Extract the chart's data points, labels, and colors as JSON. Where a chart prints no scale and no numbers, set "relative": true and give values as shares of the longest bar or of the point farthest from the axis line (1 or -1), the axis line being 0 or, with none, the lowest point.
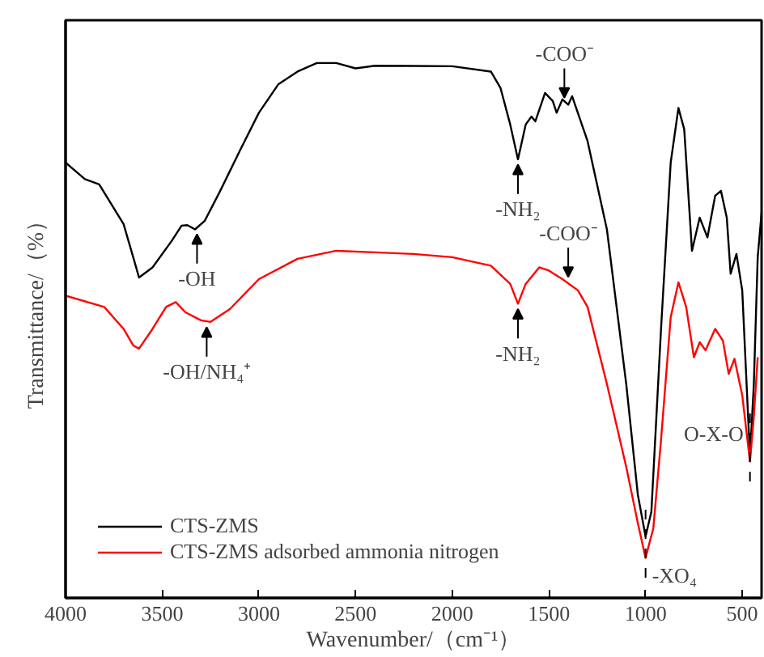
{
  "chart_data": {
    "type": "line",
    "relative": true,
    "xlabel": "Wavenumber/（cm⁻¹）",
    "ylabel": "Transmittance/（%）",
    "xlim": [
      4000,
      400
    ],
    "xticks": [
      4000,
      3500,
      3000,
      2500,
      2000,
      1500,
      1000,
      500
    ],
    "legend": "bottom left",
    "grid": false,
    "marker": "none",
    "line_style": "solid",
    "series": [
      {
        "name": "CTS-ZMS",
        "color": "#000000",
        "x": [
          4000,
          3900,
          3826,
          3700,
          3650,
          3620,
          3550,
          3450,
          3400,
          3370,
          3330,
          3280,
          3200,
          3100,
          3000,
          2900,
          2800,
          2700,
          2600,
          2500,
          2400,
          2000,
          1800,
          1750,
          1700,
          1660,
          1620,
          1590,
          1570,
          1520,
          1480,
          1460,
          1430,
          1400,
          1380,
          1300,
          1200,
          1100,
          1040,
          1000,
          970,
          920,
          870,
          830,
          800,
          760,
          720,
          680,
          640,
          610,
          580,
          560,
          530,
          500,
          460,
          440,
          420,
          400
        ],
        "values": [
          0.814,
          0.783,
          0.773,
          0.699,
          0.637,
          0.599,
          0.618,
          0.668,
          0.696,
          0.697,
          0.689,
          0.705,
          0.761,
          0.835,
          0.907,
          0.96,
          0.984,
          1.0,
          1.0,
          0.99,
          0.995,
          0.994,
          0.984,
          0.953,
          0.885,
          0.82,
          0.885,
          0.9,
          0.891,
          0.944,
          0.929,
          0.907,
          0.932,
          0.922,
          0.938,
          0.854,
          0.689,
          0.4,
          0.193,
          0.115,
          0.161,
          0.503,
          0.814,
          0.916,
          0.876,
          0.649,
          0.711,
          0.674,
          0.752,
          0.761,
          0.711,
          0.606,
          0.643,
          0.575,
          0.264,
          0.4,
          0.637,
          0.72
        ]
      },
      {
        "name": "CTS-ZMS adsorbed ammonia nitrogen",
        "color": "#ff0000",
        "x": [
          4000,
          3800,
          3700,
          3650,
          3620,
          3550,
          3480,
          3430,
          3380,
          3300,
          3250,
          3150,
          3000,
          2800,
          2600,
          2400,
          2200,
          2000,
          1800,
          1700,
          1660,
          1620,
          1550,
          1500,
          1430,
          1350,
          1300,
          1200,
          1100,
          1040,
          1000,
          960,
          920,
          870,
          830,
          790,
          750,
          720,
          690,
          640,
          600,
          570,
          540,
          500,
          460,
          440,
          420
        ],
        "values": [
          0.565,
          0.544,
          0.503,
          0.472,
          0.466,
          0.503,
          0.544,
          0.553,
          0.534,
          0.519,
          0.516,
          0.54,
          0.596,
          0.634,
          0.649,
          0.646,
          0.643,
          0.637,
          0.621,
          0.587,
          0.55,
          0.587,
          0.618,
          0.612,
          0.596,
          0.575,
          0.544,
          0.4,
          0.245,
          0.14,
          0.075,
          0.13,
          0.295,
          0.525,
          0.59,
          0.544,
          0.45,
          0.478,
          0.463,
          0.503,
          0.481,
          0.419,
          0.447,
          0.379,
          0.255,
          0.339,
          0.45
        ]
      }
    ],
    "annotations": [
      {
        "text": "-OH",
        "x": 3320,
        "y": 0.69
      },
      {
        "text": "-NH₂",
        "x": 1660,
        "y": 0.82
      },
      {
        "text": "-COO⁻",
        "x": 1420,
        "y": 0.925
      },
      {
        "text": "-OH/NH₄⁺",
        "x": 3270,
        "y": 0.516
      },
      {
        "text": "-NH₂",
        "x": 1660,
        "y": 0.55
      },
      {
        "text": "-COO⁻",
        "x": 1400,
        "y": 0.59
      },
      {
        "text": "-XO₄",
        "x": 1000,
        "y": 0.075
      },
      {
        "text": "O-X-O",
        "x": 460,
        "y": 0.255
      }
    ]
  }
}
